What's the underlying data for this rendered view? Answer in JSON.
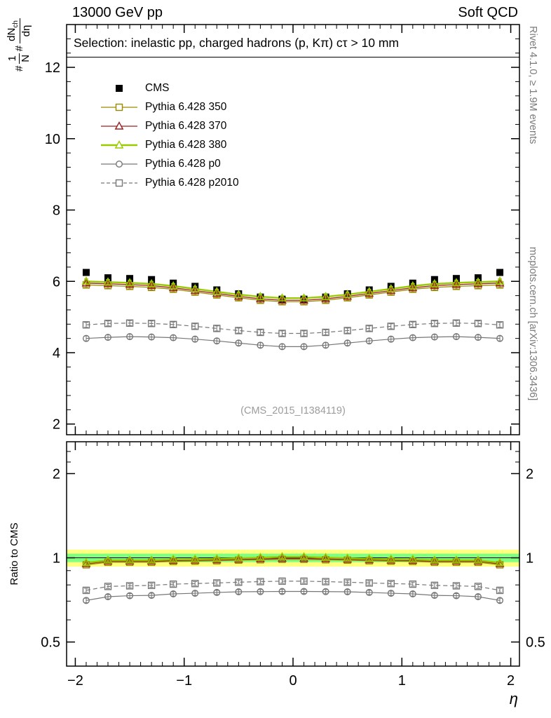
{
  "header": {
    "left": "13000 GeV pp",
    "right": "Soft QCD"
  },
  "selection": "Selection: inelastic pp, charged hadrons (p, Kπ) cτ > 10 mm",
  "ylabel": {
    "hash1": "#",
    "frac1_num": "1",
    "frac1_den": "N",
    "hash2": "#",
    "frac2_num_main": "dN",
    "frac2_num_sub": "ch",
    "frac2_den": "dη"
  },
  "side_labels": {
    "top": "Rivet 4.1.0, ≥ 1.9M events",
    "bottom": "mcplots.cern.ch [arXiv:1306.3436]"
  },
  "chart_data": {
    "type": "line",
    "xlabel": "η",
    "ylabel": "1/N dN_ch/dη",
    "ratio_ylabel": "Ratio to CMS",
    "watermark": "(CMS_2015_I1384119)",
    "xlim": [
      -2.08,
      2.08
    ],
    "main_ylim": [
      1.7,
      13.2
    ],
    "ratio_ylim": [
      0.41,
      2.6
    ],
    "xticks": [
      -2,
      -1,
      0,
      1,
      2
    ],
    "main_yticks": [
      2,
      4,
      6,
      8,
      10,
      12
    ],
    "ratio_yticks": [
      2,
      1,
      0.5
    ],
    "ratio_yminor": [
      0.6,
      0.7,
      0.8,
      0.9,
      2.2,
      2.4
    ],
    "errors": {
      "main": 0.07,
      "ratio": 0.013
    },
    "bands": {
      "yellow": {
        "color": "#ffff80",
        "half": 0.07
      },
      "green": {
        "color": "#80ff80",
        "half": 0.035
      }
    },
    "x": [
      -1.9,
      -1.7,
      -1.5,
      -1.3,
      -1.1,
      -0.9,
      -0.7,
      -0.5,
      -0.3,
      -0.1,
      0.1,
      0.3,
      0.5,
      0.7,
      0.9,
      1.1,
      1.3,
      1.5,
      1.7,
      1.9
    ],
    "series": [
      {
        "name": "CMS",
        "color": "#000000",
        "marker": "square-filled",
        "line": "none",
        "values": [
          6.25,
          6.1,
          6.08,
          6.05,
          5.95,
          5.86,
          5.76,
          5.65,
          5.56,
          5.5,
          5.5,
          5.56,
          5.65,
          5.76,
          5.86,
          5.95,
          6.05,
          6.08,
          6.1,
          6.25
        ]
      },
      {
        "name": "Pythia 6.428 350",
        "color": "#9a8a00",
        "marker": "square-open",
        "line": "solid",
        "width": 1.3,
        "values": [
          5.9,
          5.88,
          5.86,
          5.83,
          5.78,
          5.7,
          5.62,
          5.54,
          5.47,
          5.43,
          5.43,
          5.47,
          5.54,
          5.62,
          5.7,
          5.78,
          5.83,
          5.86,
          5.88,
          5.9
        ],
        "ratio": [
          0.944,
          0.964,
          0.964,
          0.964,
          0.971,
          0.973,
          0.976,
          0.981,
          0.984,
          0.987,
          0.987,
          0.984,
          0.981,
          0.976,
          0.973,
          0.971,
          0.964,
          0.964,
          0.964,
          0.944
        ]
      },
      {
        "name": "Pythia 6.428 370",
        "color": "#9b2020",
        "marker": "triangle-open",
        "line": "solid",
        "width": 1.3,
        "values": [
          5.95,
          5.93,
          5.91,
          5.88,
          5.82,
          5.74,
          5.66,
          5.58,
          5.51,
          5.47,
          5.47,
          5.51,
          5.58,
          5.66,
          5.74,
          5.82,
          5.88,
          5.91,
          5.93,
          5.95
        ],
        "ratio": [
          0.952,
          0.972,
          0.972,
          0.972,
          0.978,
          0.98,
          0.983,
          0.988,
          0.991,
          0.995,
          0.995,
          0.991,
          0.988,
          0.983,
          0.98,
          0.978,
          0.972,
          0.972,
          0.972,
          0.952
        ]
      },
      {
        "name": "Pythia 6.428 380",
        "color": "#99cc00",
        "marker": "triangle-open",
        "line": "solid",
        "width": 2.4,
        "values": [
          6.0,
          5.98,
          5.96,
          5.93,
          5.87,
          5.79,
          5.71,
          5.63,
          5.57,
          5.53,
          5.53,
          5.57,
          5.63,
          5.71,
          5.79,
          5.87,
          5.93,
          5.96,
          5.98,
          6.0
        ],
        "ratio": [
          0.96,
          0.98,
          0.98,
          0.98,
          0.987,
          0.988,
          0.991,
          0.996,
          1.002,
          1.008,
          1.008,
          1.002,
          0.996,
          0.991,
          0.988,
          0.987,
          0.98,
          0.98,
          0.98,
          0.96
        ]
      },
      {
        "name": "Pythia 6.428 p0",
        "color": "#777777",
        "marker": "circle-open",
        "line": "solid",
        "width": 1.2,
        "values": [
          4.4,
          4.43,
          4.45,
          4.44,
          4.42,
          4.38,
          4.33,
          4.27,
          4.21,
          4.17,
          4.17,
          4.21,
          4.27,
          4.33,
          4.38,
          4.42,
          4.44,
          4.45,
          4.43,
          4.4
        ],
        "ratio": [
          0.704,
          0.726,
          0.732,
          0.734,
          0.743,
          0.747,
          0.752,
          0.756,
          0.757,
          0.758,
          0.758,
          0.757,
          0.756,
          0.752,
          0.747,
          0.743,
          0.734,
          0.732,
          0.726,
          0.704
        ]
      },
      {
        "name": "Pythia 6.428 p2010",
        "color": "#777777",
        "marker": "square-open",
        "line": "dashed",
        "width": 1.2,
        "values": [
          4.78,
          4.82,
          4.83,
          4.82,
          4.79,
          4.74,
          4.68,
          4.62,
          4.57,
          4.54,
          4.54,
          4.57,
          4.62,
          4.68,
          4.74,
          4.79,
          4.82,
          4.83,
          4.82,
          4.78
        ],
        "ratio": [
          0.765,
          0.79,
          0.794,
          0.797,
          0.805,
          0.809,
          0.813,
          0.818,
          0.822,
          0.825,
          0.825,
          0.822,
          0.818,
          0.813,
          0.809,
          0.805,
          0.797,
          0.794,
          0.79,
          0.765
        ]
      }
    ]
  }
}
